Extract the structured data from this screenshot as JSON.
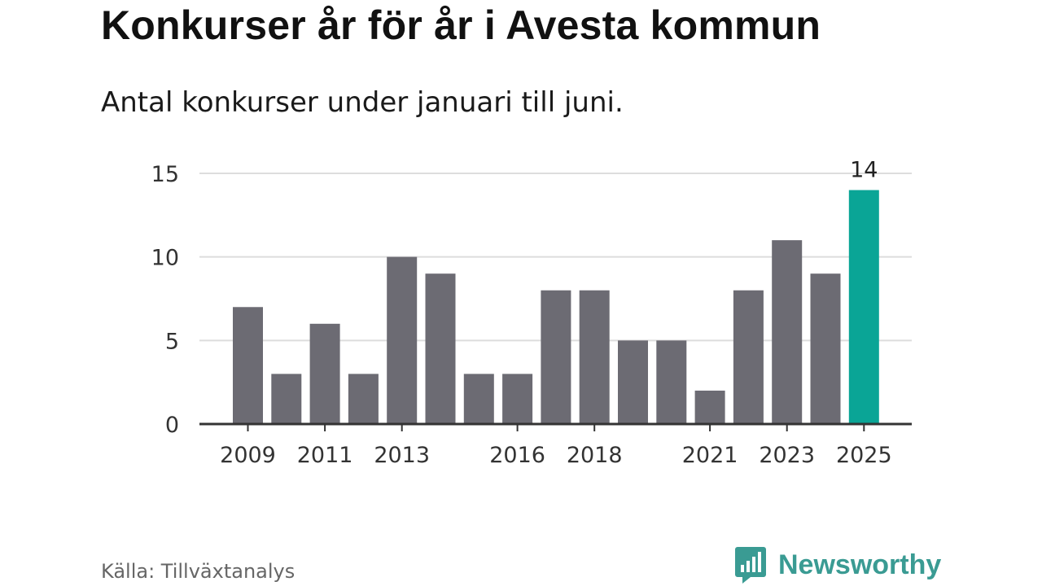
{
  "title": "Konkurser år för år i Avesta kommun",
  "subtitle": "Antal konkurser under januari till juni.",
  "source": "Källa: Tillväxtanalys",
  "brand": {
    "name": "Newsworthy",
    "icon": "newsworthy-logo-icon",
    "color": "#3a9b93"
  },
  "chart_data": {
    "type": "bar",
    "categories": [
      "2009",
      "2010",
      "2011",
      "2012",
      "2013",
      "2014",
      "2015",
      "2016",
      "2017",
      "2018",
      "2019",
      "2020",
      "2021",
      "2022",
      "2023",
      "2024",
      "2025"
    ],
    "values": [
      7,
      3,
      6,
      3,
      10,
      9,
      3,
      3,
      8,
      8,
      5,
      5,
      2,
      8,
      11,
      9,
      14
    ],
    "x_tick_labels": [
      "2009",
      "2011",
      "2013",
      "2016",
      "2018",
      "2021",
      "2023",
      "2025"
    ],
    "y_ticks": [
      0,
      5,
      10,
      15
    ],
    "ylim": [
      0,
      15
    ],
    "grid": true,
    "highlight": {
      "category": "2025",
      "value_label": "14"
    },
    "colors": {
      "bar": "#6c6b73",
      "highlight": "#0aa596",
      "grid": "#dddddd",
      "axis": "#333333"
    }
  }
}
